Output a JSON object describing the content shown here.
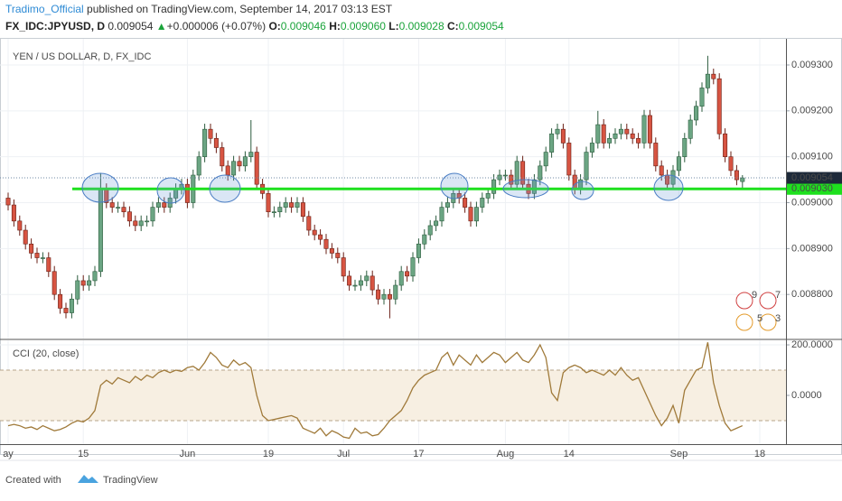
{
  "header": {
    "author": "Tradimo_Official",
    "published": "published on TradingView.com, September 14, 2017 03:13 EST",
    "symbol": "FX_IDC:JPYUSD, D",
    "price": "0.009054",
    "arrow": "▲",
    "change": "+0.000006 (+0.07%)",
    "o_label": "O:",
    "o": "0.009046",
    "h_label": "H:",
    "h": "0.009060",
    "l_label": "L:",
    "l": "0.009028",
    "c_label": "C:",
    "c": "0.009054"
  },
  "chart_data": [
    {
      "type": "candlestick",
      "title": "YEN / US DOLLAR, D, FX_IDC",
      "up_color": "#6ba583",
      "down_color": "#d75442",
      "grid": true,
      "ylim": [
        0.008704,
        0.009357
      ],
      "yticks": [
        {
          "value": 0.0088,
          "label": "0.008800"
        },
        {
          "value": 0.0089,
          "label": "0.008900"
        },
        {
          "value": 0.009,
          "label": "0.009000"
        },
        {
          "value": 0.0091,
          "label": "0.009100"
        },
        {
          "value": 0.0092,
          "label": "0.009200"
        },
        {
          "value": 0.0093,
          "label": "0.009300"
        }
      ],
      "levels": [
        {
          "value": 0.00903,
          "label": "0.009030",
          "color": "#1ee01e"
        }
      ],
      "last_price": {
        "value": 0.009054,
        "label": "0.009054"
      },
      "event_badges": [
        "9",
        "7",
        "5",
        "3"
      ],
      "open": [
        0.00901,
        0.008995,
        0.00896,
        0.00894,
        0.00891,
        0.00889,
        0.00888,
        0.00888,
        0.00885,
        0.0088,
        0.00877,
        0.00876,
        0.00879,
        0.00883,
        0.00882,
        0.00883,
        0.00885,
        0.00903,
        0.009,
        0.00899,
        0.00899,
        0.00898,
        0.00896,
        0.00895,
        0.00896,
        0.00896,
        0.00899,
        0.009,
        0.00899,
        0.00901,
        0.00903,
        0.00904,
        0.009,
        0.00906,
        0.0091,
        0.00916,
        0.00914,
        0.00912,
        0.00908,
        0.00906,
        0.00909,
        0.00908,
        0.0091,
        0.00911,
        0.00904,
        0.00902,
        0.00898,
        0.00898,
        0.00899,
        0.009,
        0.00899,
        0.009,
        0.00897,
        0.00894,
        0.00893,
        0.00892,
        0.0089,
        0.00889,
        0.00888,
        0.00884,
        0.00882,
        0.00882,
        0.00883,
        0.00884,
        0.00881,
        0.00879,
        0.0088,
        0.00879,
        0.00882,
        0.00885,
        0.00884,
        0.00888,
        0.00891,
        0.00893,
        0.00895,
        0.00896,
        0.00899,
        0.009,
        0.00902,
        0.00901,
        0.00899,
        0.00896,
        0.00899,
        0.00901,
        0.00902,
        0.00905,
        0.00906,
        0.00906,
        0.00904,
        0.00909,
        0.00904,
        0.00902,
        0.00905,
        0.00908,
        0.00911,
        0.00915,
        0.00916,
        0.00913,
        0.00906,
        0.00903,
        0.00905,
        0.00911,
        0.00913,
        0.00917,
        0.00913,
        0.00914,
        0.00915,
        0.00916,
        0.00915,
        0.00914,
        0.00913,
        0.00919,
        0.00913,
        0.00908,
        0.00906,
        0.00904,
        0.00907,
        0.0091,
        0.00914,
        0.00918,
        0.00921,
        0.00925,
        0.00928,
        0.00927,
        0.00915,
        0.0091,
        0.00907,
        0.009046,
        null,
        null,
        null
      ],
      "high": [
        0.009022,
        0.009007,
        0.008972,
        0.008952,
        0.008922,
        0.008902,
        0.008892,
        0.008892,
        0.008862,
        0.008812,
        0.008782,
        0.008802,
        0.008842,
        0.008842,
        0.008842,
        0.008862,
        0.009065,
        0.009042,
        0.009012,
        0.009002,
        0.009002,
        0.008992,
        0.008972,
        0.008972,
        0.008972,
        0.009002,
        0.009012,
        0.009012,
        0.009022,
        0.009042,
        0.009052,
        0.009052,
        0.009072,
        0.009112,
        0.009172,
        0.009172,
        0.009152,
        0.009132,
        0.009092,
        0.009102,
        0.009102,
        0.009112,
        0.00918,
        0.009122,
        0.009052,
        0.009032,
        0.008992,
        0.009002,
        0.009012,
        0.009012,
        0.009012,
        0.009012,
        0.008982,
        0.008952,
        0.008942,
        0.008932,
        0.008912,
        0.008902,
        0.008892,
        0.008852,
        0.008832,
        0.008842,
        0.008852,
        0.008852,
        0.008822,
        0.008812,
        0.008812,
        0.008832,
        0.008862,
        0.008862,
        0.008892,
        0.008922,
        0.008942,
        0.008962,
        0.008972,
        0.009002,
        0.009012,
        0.009032,
        0.009032,
        0.009022,
        0.009002,
        0.009002,
        0.009022,
        0.009032,
        0.009062,
        0.009072,
        0.009072,
        0.009072,
        0.009102,
        0.009102,
        0.009052,
        0.009062,
        0.009092,
        0.009122,
        0.009162,
        0.009172,
        0.009172,
        0.009142,
        0.009072,
        0.009062,
        0.009122,
        0.009142,
        0.0092,
        0.009182,
        0.009152,
        0.009162,
        0.009172,
        0.009172,
        0.009162,
        0.009152,
        0.009202,
        0.009202,
        0.009142,
        0.009092,
        0.009072,
        0.009082,
        0.009112,
        0.009152,
        0.009192,
        0.009222,
        0.009262,
        0.00932,
        0.009292,
        0.009282,
        0.009162,
        0.009112,
        0.009082,
        0.00906,
        null,
        null,
        null
      ],
      "low": [
        0.008983,
        0.008948,
        0.008928,
        0.008898,
        0.008878,
        0.008868,
        0.008868,
        0.008838,
        0.008788,
        0.008758,
        0.008748,
        0.008748,
        0.008778,
        0.008808,
        0.008808,
        0.008818,
        0.008838,
        0.008988,
        0.008978,
        0.008978,
        0.008968,
        0.008948,
        0.008938,
        0.008938,
        0.008948,
        0.008948,
        0.008978,
        0.008978,
        0.008978,
        0.008998,
        0.009018,
        0.008988,
        0.008988,
        0.009048,
        0.009088,
        0.009128,
        0.009108,
        0.009068,
        0.009048,
        0.009048,
        0.009068,
        0.009068,
        0.009088,
        0.009028,
        0.009008,
        0.008968,
        0.008968,
        0.008968,
        0.008978,
        0.008978,
        0.008978,
        0.008958,
        0.008928,
        0.008918,
        0.008908,
        0.008888,
        0.008878,
        0.008868,
        0.008828,
        0.008808,
        0.008808,
        0.008808,
        0.008818,
        0.008798,
        0.008778,
        0.008778,
        0.008748,
        0.008778,
        0.008808,
        0.008828,
        0.008828,
        0.008868,
        0.008898,
        0.008918,
        0.008938,
        0.008948,
        0.008978,
        0.008988,
        0.008998,
        0.008978,
        0.008948,
        0.008948,
        0.008978,
        0.008998,
        0.009008,
        0.009038,
        0.009048,
        0.009028,
        0.009028,
        0.009028,
        0.009008,
        0.009008,
        0.009038,
        0.009068,
        0.009098,
        0.009138,
        0.009118,
        0.009048,
        0.009018,
        0.009018,
        0.009038,
        0.009098,
        0.009118,
        0.009118,
        0.009118,
        0.009128,
        0.009138,
        0.009138,
        0.009128,
        0.009118,
        0.009118,
        0.009118,
        0.009068,
        0.009048,
        0.009028,
        0.009028,
        0.009058,
        0.009088,
        0.009128,
        0.009168,
        0.009198,
        0.009238,
        0.009258,
        0.009138,
        0.009088,
        0.009058,
        0.009038,
        0.009028,
        null,
        null,
        null
      ],
      "close": [
        0.008995,
        0.00896,
        0.00894,
        0.00891,
        0.00889,
        0.00888,
        0.00888,
        0.00885,
        0.0088,
        0.00877,
        0.00876,
        0.00879,
        0.00883,
        0.00882,
        0.00883,
        0.00885,
        0.00903,
        0.009,
        0.00899,
        0.00899,
        0.00898,
        0.00896,
        0.00895,
        0.00896,
        0.00896,
        0.00899,
        0.009,
        0.00899,
        0.00901,
        0.00903,
        0.00904,
        0.009,
        0.00906,
        0.0091,
        0.00916,
        0.00914,
        0.00912,
        0.00908,
        0.00906,
        0.00909,
        0.00908,
        0.0091,
        0.00911,
        0.00904,
        0.00902,
        0.00898,
        0.00898,
        0.00899,
        0.009,
        0.00899,
        0.009,
        0.00897,
        0.00894,
        0.00893,
        0.00892,
        0.0089,
        0.00889,
        0.00888,
        0.00884,
        0.00882,
        0.00882,
        0.00883,
        0.00884,
        0.00881,
        0.00879,
        0.0088,
        0.00879,
        0.00882,
        0.00885,
        0.00884,
        0.00888,
        0.00891,
        0.00893,
        0.00895,
        0.00896,
        0.00899,
        0.009,
        0.00902,
        0.00901,
        0.00899,
        0.00896,
        0.00899,
        0.00901,
        0.00902,
        0.00905,
        0.00906,
        0.00906,
        0.00904,
        0.00909,
        0.00904,
        0.00902,
        0.00905,
        0.00908,
        0.00911,
        0.00915,
        0.00916,
        0.00913,
        0.00906,
        0.00903,
        0.00905,
        0.00911,
        0.00913,
        0.00917,
        0.00913,
        0.00914,
        0.00915,
        0.00916,
        0.00915,
        0.00914,
        0.00913,
        0.00919,
        0.00913,
        0.00908,
        0.00906,
        0.00904,
        0.00907,
        0.0091,
        0.00914,
        0.00918,
        0.00921,
        0.00925,
        0.00928,
        0.00927,
        0.00915,
        0.0091,
        0.00907,
        0.00905,
        0.009054,
        null,
        null,
        null
      ]
    },
    {
      "type": "line",
      "title": "CCI (20, close)",
      "color": "#a07a3a",
      "band": [
        -100,
        100
      ],
      "band_color": "#f7efe2",
      "ylim": [
        -193,
        218
      ],
      "yticks": [
        {
          "value": 200,
          "label": "200.0000"
        },
        {
          "value": 0,
          "label": "0.0000"
        }
      ],
      "categories": [
        "ay",
        null,
        null,
        null,
        null,
        null,
        null,
        null,
        null,
        null,
        null,
        null,
        null,
        "15",
        null,
        null,
        null,
        null,
        null,
        null,
        null,
        null,
        null,
        null,
        null,
        null,
        null,
        null,
        null,
        null,
        null,
        "Jun",
        null,
        null,
        null,
        null,
        null,
        null,
        null,
        null,
        null,
        null,
        null,
        null,
        null,
        "19",
        null,
        null,
        null,
        null,
        null,
        null,
        null,
        null,
        null,
        null,
        null,
        null,
        "Jul",
        null,
        null,
        null,
        null,
        null,
        null,
        null,
        null,
        null,
        null,
        null,
        null,
        "17",
        null,
        null,
        null,
        null,
        null,
        null,
        null,
        null,
        null,
        null,
        null,
        null,
        null,
        null,
        "Aug",
        null,
        null,
        null,
        null,
        null,
        null,
        null,
        null,
        null,
        null,
        "14",
        null,
        null,
        null,
        null,
        null,
        null,
        null,
        null,
        null,
        null,
        null,
        null,
        null,
        null,
        null,
        null,
        null,
        null,
        "Sep",
        null,
        null,
        null,
        null,
        null,
        null,
        null,
        null,
        null,
        null,
        null,
        null,
        null,
        "18"
      ],
      "values": [
        -120,
        -115,
        -120,
        -130,
        -125,
        -135,
        -120,
        -130,
        -140,
        -135,
        -125,
        -110,
        -100,
        -105,
        -90,
        -60,
        40,
        60,
        45,
        70,
        60,
        50,
        75,
        60,
        80,
        70,
        90,
        100,
        90,
        100,
        95,
        110,
        115,
        100,
        130,
        170,
        150,
        120,
        110,
        140,
        120,
        130,
        110,
        0,
        -80,
        -100,
        -95,
        -90,
        -85,
        -80,
        -90,
        -130,
        -140,
        -150,
        -130,
        -160,
        -140,
        -150,
        -165,
        -170,
        -130,
        -150,
        -145,
        -160,
        -155,
        -130,
        -100,
        -80,
        -60,
        -20,
        30,
        60,
        80,
        90,
        100,
        150,
        170,
        120,
        160,
        140,
        120,
        160,
        130,
        150,
        170,
        160,
        130,
        150,
        170,
        140,
        130,
        160,
        200,
        150,
        10,
        -20,
        90,
        110,
        120,
        110,
        90,
        100,
        90,
        80,
        100,
        80,
        110,
        80,
        60,
        70,
        20,
        -30,
        -80,
        -120,
        -90,
        -40,
        -110,
        20,
        60,
        100,
        110,
        210,
        50,
        -40,
        -110,
        -140,
        -130,
        -120,
        null,
        null,
        null
      ]
    }
  ],
  "footer": {
    "created": "Created with",
    "brand": "TradingView"
  }
}
